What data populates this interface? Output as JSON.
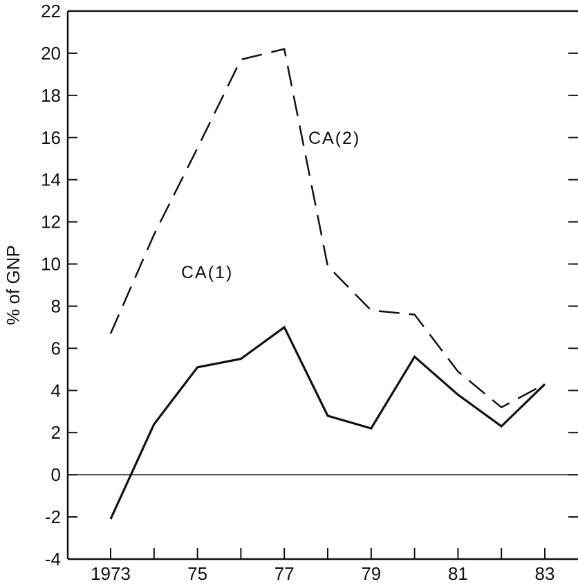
{
  "chart_data": {
    "type": "line",
    "title": "",
    "xlabel": "",
    "ylabel": "% of GNP",
    "x": [
      1973,
      1974,
      1975,
      1976,
      1977,
      1978,
      1979,
      1980,
      1981,
      1982,
      1983
    ],
    "x_tick_labels": [
      "1973",
      "",
      "75",
      "",
      "77",
      "",
      "79",
      "",
      "81",
      "",
      "83"
    ],
    "ylim": [
      -4,
      22
    ],
    "y_ticks": [
      -4,
      -2,
      0,
      2,
      4,
      6,
      8,
      10,
      12,
      14,
      16,
      18,
      20,
      22
    ],
    "y_tick_labels": [
      "-4",
      "-2",
      "0",
      "2",
      "4",
      "6",
      "8",
      "10",
      "12",
      "14",
      "16",
      "18",
      "20",
      "22"
    ],
    "zero_line": true,
    "grid": false,
    "series": [
      {
        "name": "CA(1)",
        "style": "solid",
        "values": [
          -2.1,
          2.4,
          5.1,
          5.5,
          7.0,
          2.8,
          2.2,
          5.6,
          3.8,
          2.3,
          4.3
        ]
      },
      {
        "name": "CA(2)",
        "style": "dashed",
        "values": [
          6.7,
          11.4,
          15.5,
          19.7,
          20.2,
          9.9,
          7.8,
          7.6,
          4.9,
          3.2,
          4.3
        ]
      }
    ]
  }
}
